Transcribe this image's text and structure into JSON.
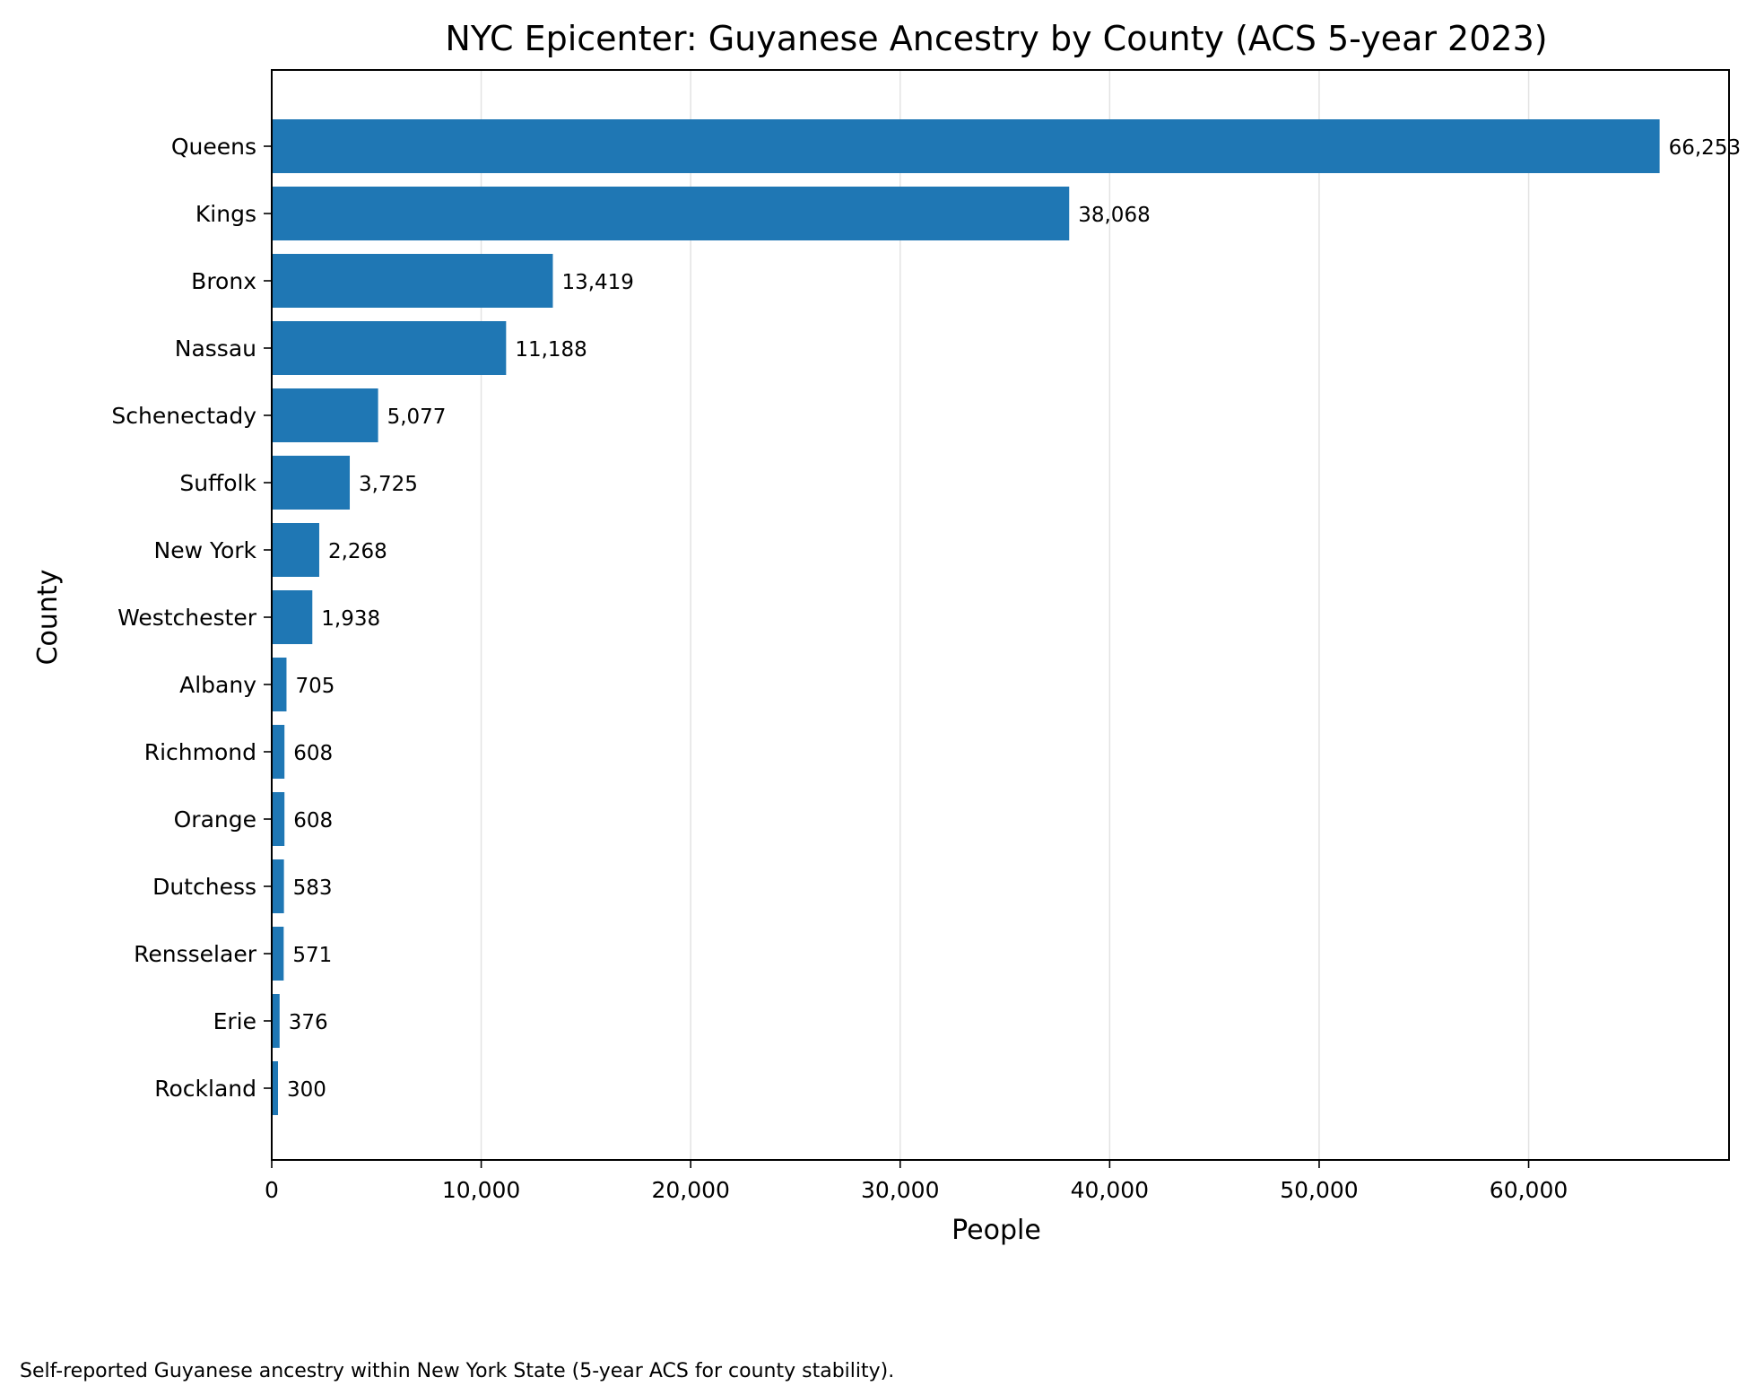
{
  "chart_data": {
    "type": "bar",
    "orientation": "horizontal",
    "title": "NYC Epicenter: Guyanese Ancestry by County (ACS 5-year 2023)",
    "xlabel": "People",
    "ylabel": "County",
    "categories": [
      "Queens",
      "Kings",
      "Bronx",
      "Nassau",
      "Schenectady",
      "Suffolk",
      "New York",
      "Westchester",
      "Albany",
      "Richmond",
      "Orange",
      "Dutchess",
      "Rensselaer",
      "Erie",
      "Rockland"
    ],
    "values": [
      66253,
      38068,
      13419,
      11188,
      5077,
      3725,
      2268,
      1938,
      705,
      608,
      608,
      583,
      571,
      376,
      300
    ],
    "data_labels": [
      "66,253",
      "38,068",
      "13,419",
      "11,188",
      "5,077",
      "3,725",
      "2,268",
      "1,938",
      "705",
      "608",
      "608",
      "583",
      "571",
      "376",
      "300"
    ],
    "xlim": [
      0,
      69566
    ],
    "xticks": [
      0,
      10000,
      20000,
      30000,
      40000,
      50000,
      60000
    ],
    "xtick_labels": [
      "0",
      "10,000",
      "20,000",
      "30,000",
      "40,000",
      "50,000",
      "60,000"
    ],
    "grid": "vertical",
    "bar_color": "#1f77b4",
    "footnote": "Self-reported Guyanese ancestry within New York State (5-year ACS for county stability)."
  }
}
